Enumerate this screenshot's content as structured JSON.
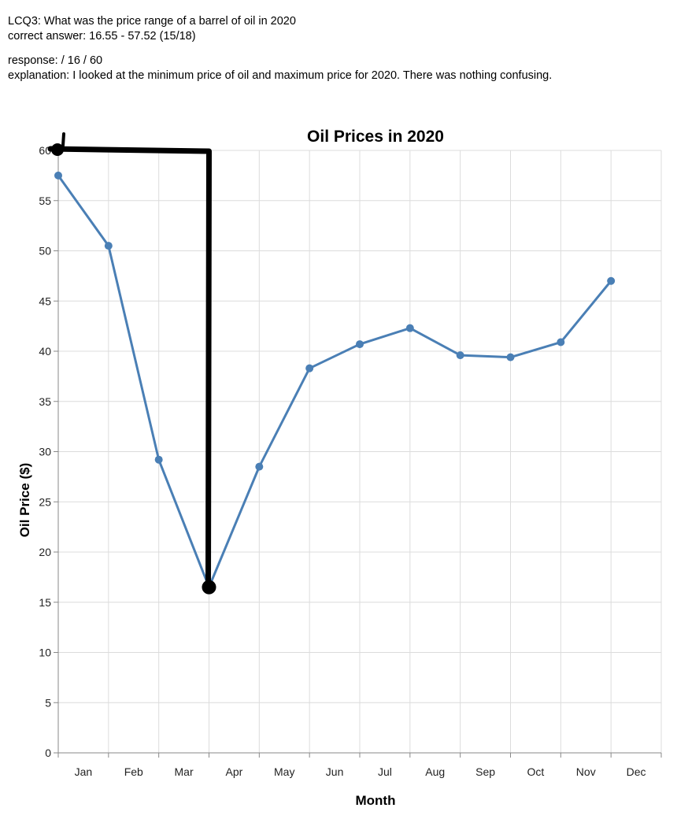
{
  "header": {
    "question": "LCQ3: What was the price range of a barrel of oil in 2020",
    "correct_answer": "correct answer: 16.55 -  57.52 (15/18)",
    "response": "response:  / 16 / 60",
    "explanation": "explanation: I looked at the minimum price of oil and maximum price for 2020. There was nothing confusing."
  },
  "colors": {
    "series_line": "#4a7fb5",
    "annotation_ink": "#000000",
    "grid": "#dcdcdc"
  },
  "chart_data": {
    "type": "line",
    "title": "Oil Prices in 2020",
    "xlabel": "Month",
    "ylabel": "Oil Price ($)",
    "categories": [
      "Jan",
      "Feb",
      "Mar",
      "Apr",
      "May",
      "Jun",
      "Jul",
      "Aug",
      "Sep",
      "Oct",
      "Nov",
      "Dec"
    ],
    "x": [
      "Jan",
      "Feb",
      "Mar",
      "Apr",
      "May",
      "Jun",
      "Jul",
      "Aug",
      "Sep",
      "Oct",
      "Nov",
      "Dec"
    ],
    "series": [
      {
        "values": [
          57.5,
          50.5,
          29.2,
          16.5,
          28.5,
          38.3,
          40.7,
          42.3,
          39.6,
          39.4,
          40.9,
          47.0
        ]
      }
    ],
    "ylim": [
      0,
      60
    ],
    "yticks": [
      0,
      5,
      10,
      15,
      20,
      25,
      30,
      35,
      40,
      45,
      50,
      55,
      60
    ],
    "grid": true,
    "legend": "none",
    "annotation": {
      "kind": "hand-drawn marker line",
      "path_values": [
        [
          0,
          60
        ],
        [
          3,
          60
        ],
        [
          3,
          16.5
        ]
      ]
    }
  }
}
